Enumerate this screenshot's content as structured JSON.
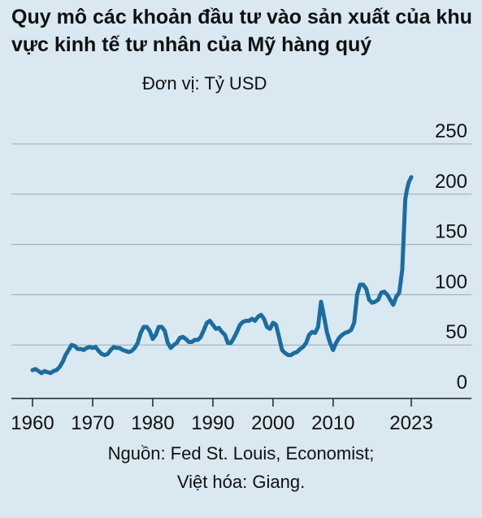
{
  "title": "Quy mô các khoản đầu tư vào sản xuất của khu vực kinh tế tư nhân của Mỹ hàng quý",
  "unit_label": "Đơn vị: Tỷ USD",
  "source_line1": "Nguồn: Fed St. Louis, Economist;",
  "source_line2": "Việt hóa: Giang.",
  "colors": {
    "background": "#d9e8f1",
    "line": "#1d6c9e",
    "grid": "#9aaab5",
    "axis": "#222222"
  },
  "chart_data": {
    "type": "line",
    "title": "Quy mô các khoản đầu tư vào sản xuất của khu vực kinh tế tư nhân của Mỹ hàng quý",
    "xlabel": "",
    "ylabel": "Đơn vị: Tỷ USD",
    "xlim": [
      1960,
      2023
    ],
    "ylim": [
      0,
      250
    ],
    "y_ticks": [
      0,
      50,
      100,
      150,
      200,
      250
    ],
    "y_tick_labels": [
      "0",
      "50",
      "100",
      "150",
      "200",
      "250"
    ],
    "x_ticks": [
      1960,
      1970,
      1980,
      1990,
      2000,
      2010,
      2023
    ],
    "x_tick_labels": [
      "1960",
      "1970",
      "1980",
      "1990",
      "2000",
      "2010",
      "2023"
    ],
    "grid": true,
    "legend": "none",
    "series": [
      {
        "values": [
          [
            1960,
            25
          ],
          [
            1960.5,
            26
          ],
          [
            1961,
            24
          ],
          [
            1961.5,
            22
          ],
          [
            1962,
            24
          ],
          [
            1962.5,
            23
          ],
          [
            1963,
            22
          ],
          [
            1963.5,
            24
          ],
          [
            1964,
            25
          ],
          [
            1964.5,
            28
          ],
          [
            1965,
            33
          ],
          [
            1965.5,
            40
          ],
          [
            1966,
            45
          ],
          [
            1966.5,
            50
          ],
          [
            1967,
            49
          ],
          [
            1967.5,
            46
          ],
          [
            1968,
            46
          ],
          [
            1968.5,
            45
          ],
          [
            1969,
            47
          ],
          [
            1969.5,
            48
          ],
          [
            1970,
            47
          ],
          [
            1970.5,
            48
          ],
          [
            1971,
            44
          ],
          [
            1971.5,
            41
          ],
          [
            1972,
            40
          ],
          [
            1972.5,
            41
          ],
          [
            1973,
            45
          ],
          [
            1973.5,
            48
          ],
          [
            1974,
            47
          ],
          [
            1974.5,
            47
          ],
          [
            1975,
            45
          ],
          [
            1975.5,
            44
          ],
          [
            1976,
            43
          ],
          [
            1976.5,
            44
          ],
          [
            1977,
            47
          ],
          [
            1977.5,
            52
          ],
          [
            1978,
            62
          ],
          [
            1978.5,
            68
          ],
          [
            1979,
            68
          ],
          [
            1979.5,
            64
          ],
          [
            1980,
            56
          ],
          [
            1980.5,
            60
          ],
          [
            1981,
            68
          ],
          [
            1981.5,
            68
          ],
          [
            1982,
            64
          ],
          [
            1982.5,
            52
          ],
          [
            1983,
            47
          ],
          [
            1983.5,
            50
          ],
          [
            1984,
            52
          ],
          [
            1984.5,
            57
          ],
          [
            1985,
            58
          ],
          [
            1985.5,
            56
          ],
          [
            1986,
            53
          ],
          [
            1986.5,
            53
          ],
          [
            1987,
            55
          ],
          [
            1987.5,
            55
          ],
          [
            1988,
            58
          ],
          [
            1988.5,
            65
          ],
          [
            1989,
            72
          ],
          [
            1989.5,
            74
          ],
          [
            1990,
            70
          ],
          [
            1990.5,
            66
          ],
          [
            1991,
            67
          ],
          [
            1991.5,
            63
          ],
          [
            1992,
            60
          ],
          [
            1992.5,
            52
          ],
          [
            1993,
            52
          ],
          [
            1993.5,
            57
          ],
          [
            1994,
            63
          ],
          [
            1994.5,
            70
          ],
          [
            1995,
            73
          ],
          [
            1995.5,
            74
          ],
          [
            1996,
            74
          ],
          [
            1996.5,
            76
          ],
          [
            1997,
            74
          ],
          [
            1997.5,
            78
          ],
          [
            1998,
            80
          ],
          [
            1998.5,
            76
          ],
          [
            1999,
            68
          ],
          [
            1999.5,
            66
          ],
          [
            2000,
            72
          ],
          [
            2000.5,
            70
          ],
          [
            2001,
            58
          ],
          [
            2001.5,
            45
          ],
          [
            2002,
            42
          ],
          [
            2002.5,
            40
          ],
          [
            2003,
            40
          ],
          [
            2003.5,
            42
          ],
          [
            2004,
            43
          ],
          [
            2004.5,
            46
          ],
          [
            2005,
            48
          ],
          [
            2005.5,
            52
          ],
          [
            2006,
            60
          ],
          [
            2006.5,
            63
          ],
          [
            2007,
            62
          ],
          [
            2007.5,
            68
          ],
          [
            2008,
            93
          ],
          [
            2008.5,
            78
          ],
          [
            2009,
            62
          ],
          [
            2009.5,
            52
          ],
          [
            2010,
            45
          ],
          [
            2010.5,
            52
          ],
          [
            2011,
            57
          ],
          [
            2011.5,
            60
          ],
          [
            2012,
            62
          ],
          [
            2012.5,
            63
          ],
          [
            2013,
            65
          ],
          [
            2013.5,
            72
          ],
          [
            2014,
            100
          ],
          [
            2014.5,
            110
          ],
          [
            2015,
            110
          ],
          [
            2015.5,
            106
          ],
          [
            2016,
            95
          ],
          [
            2016.5,
            92
          ],
          [
            2017,
            93
          ],
          [
            2017.5,
            95
          ],
          [
            2018,
            102
          ],
          [
            2018.5,
            103
          ],
          [
            2019,
            100
          ],
          [
            2019.5,
            95
          ],
          [
            2020,
            90
          ],
          [
            2020.5,
            98
          ],
          [
            2021,
            102
          ],
          [
            2021.5,
            125
          ],
          [
            2022,
            195
          ],
          [
            2022.3,
            205
          ],
          [
            2022.6,
            212
          ],
          [
            2023,
            217
          ]
        ]
      }
    ]
  }
}
